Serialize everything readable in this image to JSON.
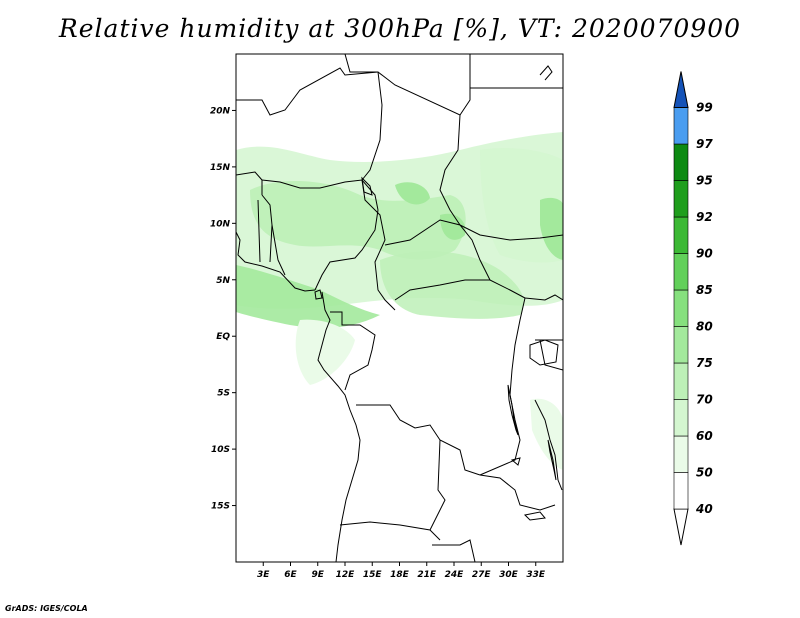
{
  "title": "Relative humidity at 300hPa [%], VT: 2020070900",
  "credit": "GrADS: IGES/COLA",
  "map": {
    "lon_range": [
      0,
      36
    ],
    "lat_range": [
      -20,
      25
    ],
    "lat_ticks": [
      {
        "value": 20,
        "label": "20N"
      },
      {
        "value": 15,
        "label": "15N"
      },
      {
        "value": 10,
        "label": "10N"
      },
      {
        "value": 5,
        "label": "5N"
      },
      {
        "value": 0,
        "label": "EQ"
      },
      {
        "value": -5,
        "label": "5S"
      },
      {
        "value": -10,
        "label": "10S"
      },
      {
        "value": -15,
        "label": "15S"
      }
    ],
    "lon_ticks": [
      {
        "value": 3,
        "label": "3E"
      },
      {
        "value": 6,
        "label": "6E"
      },
      {
        "value": 9,
        "label": "9E"
      },
      {
        "value": 12,
        "label": "12E"
      },
      {
        "value": 15,
        "label": "15E"
      },
      {
        "value": 18,
        "label": "18E"
      },
      {
        "value": 21,
        "label": "21E"
      },
      {
        "value": 24,
        "label": "24E"
      },
      {
        "value": 27,
        "label": "27E"
      },
      {
        "value": 30,
        "label": "30E"
      },
      {
        "value": 33,
        "label": "33E"
      }
    ]
  },
  "colorbar": {
    "levels": [
      {
        "label": "40",
        "color": "#ffffff"
      },
      {
        "label": "50",
        "color": "#eafbe8"
      },
      {
        "label": "60",
        "color": "#d4f6d0"
      },
      {
        "label": "70",
        "color": "#bdf0b7"
      },
      {
        "label": "75",
        "color": "#a3e99c"
      },
      {
        "label": "80",
        "color": "#86e07e"
      },
      {
        "label": "85",
        "color": "#62d05a"
      },
      {
        "label": "90",
        "color": "#3cb935"
      },
      {
        "label": "92",
        "color": "#1f9e1d"
      },
      {
        "label": "95",
        "color": "#0d8a12"
      },
      {
        "label": "97",
        "color": "#4a9df0"
      },
      {
        "label": "99",
        "color": "#1e6fd9"
      }
    ],
    "top_arrow_color": "#1553b8"
  },
  "humidity_zones": [
    {
      "name": "sahel-band",
      "color": "#d4f6d0"
    },
    {
      "name": "nigeria-cameroon",
      "color": "#bdf0b7"
    },
    {
      "name": "gulf-of-guinea",
      "color": "#a3e99c"
    },
    {
      "name": "central-african",
      "color": "#bdf0b7"
    },
    {
      "name": "sudan-east",
      "color": "#d4f6d0"
    }
  ]
}
